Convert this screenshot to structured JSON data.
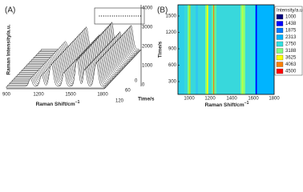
{
  "panel_a": {
    "label": "(A)",
    "y_label": "Raman Intensity/a.u.",
    "y_ticks": [
      "4000",
      "3000",
      "2000",
      "1000",
      "0"
    ],
    "x_label": "Raman Shift/cm",
    "x_label_sup": "−1",
    "x_ticks": [
      "900",
      "1200",
      "1500",
      "1800"
    ],
    "time_label": "Time/s",
    "time_ticks": [
      "0",
      "60",
      "120"
    ]
  },
  "panel_b": {
    "label": "(B)",
    "y_label": "Time/s",
    "y_ticks": [
      "1500",
      "1200",
      "900",
      "600",
      "300"
    ],
    "x_label": "Raman Shift/cm",
    "x_label_sup": "−1",
    "x_ticks": [
      "1000",
      "1200",
      "1400",
      "1600",
      "1800"
    ],
    "legend_title": "Intensity/a.u.",
    "legend": [
      {
        "label": "1000",
        "color": "#000080"
      },
      {
        "label": "1438",
        "color": "#0000ff"
      },
      {
        "label": "1875",
        "color": "#0078ff"
      },
      {
        "label": "2313",
        "color": "#00b4ff"
      },
      {
        "label": "2750",
        "color": "#30e0e0"
      },
      {
        "label": "3188",
        "color": "#80ff80"
      },
      {
        "label": "3625",
        "color": "#ffff00"
      },
      {
        "label": "4063",
        "color": "#ff8000"
      },
      {
        "label": "4500",
        "color": "#ff0000"
      }
    ]
  }
}
